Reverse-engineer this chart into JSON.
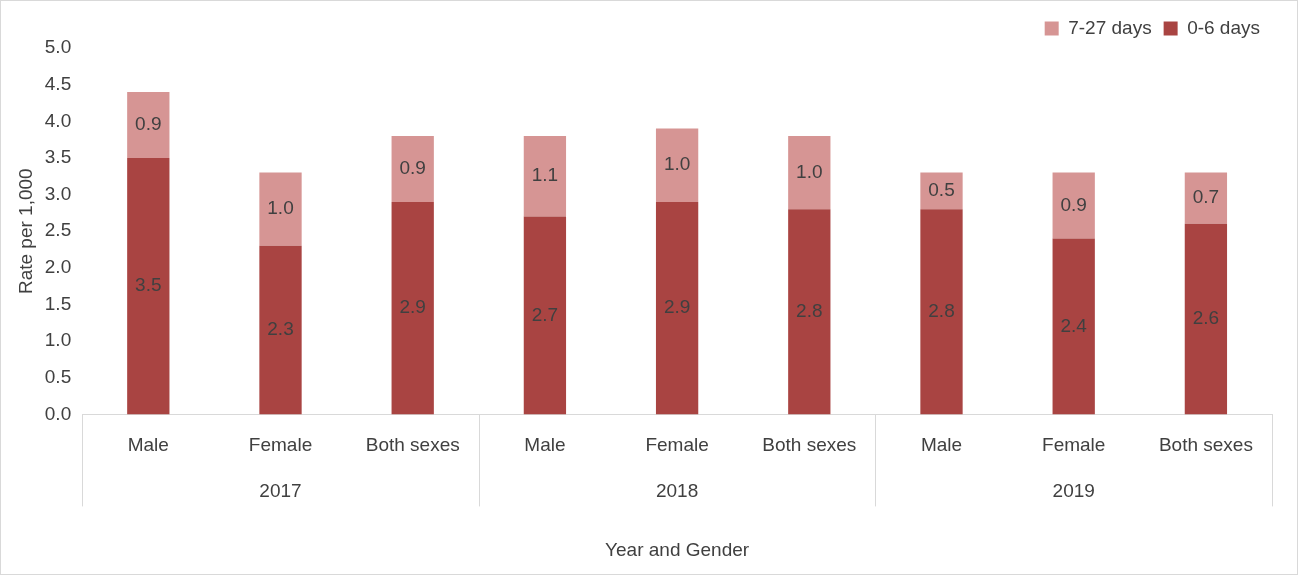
{
  "chart_data": {
    "type": "bar",
    "stacked": true,
    "xlabel": "Year and Gender",
    "ylabel": "Rate per 1,000",
    "categories": [
      "Male",
      "Female",
      "Both sexes",
      "Male",
      "Female",
      "Both sexes",
      "Male",
      "Female",
      "Both sexes"
    ],
    "series": [
      {
        "name": "0-6 days",
        "color": "#a94442",
        "values": [
          3.5,
          2.3,
          2.9,
          2.7,
          2.9,
          2.8,
          2.8,
          2.4,
          2.6
        ],
        "value_labels": [
          "3.5",
          "2.3",
          "2.9",
          "2.7",
          "2.9",
          "2.8",
          "2.8",
          "2.4",
          "2.6"
        ]
      },
      {
        "name": "7-27 days",
        "color": "#d69594",
        "values": [
          0.9,
          1.0,
          0.9,
          1.1,
          1.0,
          1.0,
          0.5,
          0.9,
          0.7
        ],
        "value_labels": [
          "0.9",
          "1.0",
          "0.9",
          "1.1",
          "1.0",
          "1.0",
          "0.5",
          "0.9",
          "0.7"
        ]
      }
    ],
    "annotations": [
      "2017",
      "2018",
      "2019"
    ],
    "ylim": [
      0,
      5
    ],
    "yticks": [
      {
        "value": 0,
        "label": "0.0"
      },
      {
        "value": 0.5,
        "label": "0.5"
      },
      {
        "value": 1,
        "label": "1.0"
      },
      {
        "value": 1.5,
        "label": "1.5"
      },
      {
        "value": 2,
        "label": "2.0"
      },
      {
        "value": 2.5,
        "label": "2.5"
      },
      {
        "value": 3,
        "label": "3.0"
      },
      {
        "value": 3.5,
        "label": "3.5"
      },
      {
        "value": 4,
        "label": "4.0"
      },
      {
        "value": 4.5,
        "label": "4.5"
      },
      {
        "value": 5,
        "label": "5.0"
      }
    ],
    "grid": false,
    "legend": "top right"
  }
}
